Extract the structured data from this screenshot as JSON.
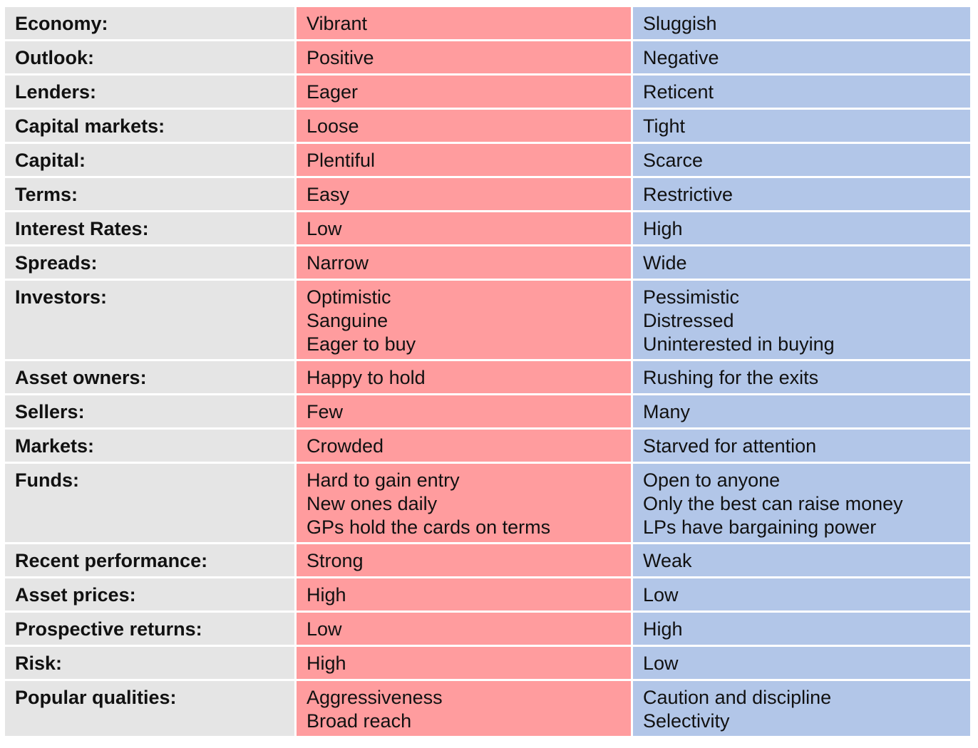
{
  "rows": [
    {
      "label": "Economy:",
      "hot": [
        "Vibrant"
      ],
      "cold": [
        "Sluggish"
      ]
    },
    {
      "label": "Outlook:",
      "hot": [
        "Positive"
      ],
      "cold": [
        "Negative"
      ]
    },
    {
      "label": "Lenders:",
      "hot": [
        "Eager"
      ],
      "cold": [
        "Reticent"
      ]
    },
    {
      "label": "Capital markets:",
      "hot": [
        "Loose"
      ],
      "cold": [
        "Tight"
      ]
    },
    {
      "label": "Capital:",
      "hot": [
        "Plentiful"
      ],
      "cold": [
        "Scarce"
      ]
    },
    {
      "label": "Terms:",
      "hot": [
        "Easy"
      ],
      "cold": [
        "Restrictive"
      ]
    },
    {
      "label": "Interest Rates:",
      "hot": [
        "Low"
      ],
      "cold": [
        "High"
      ]
    },
    {
      "label": "Spreads:",
      "hot": [
        "Narrow"
      ],
      "cold": [
        "Wide"
      ]
    },
    {
      "label": "Investors:",
      "hot": [
        "Optimistic",
        "Sanguine",
        "Eager to buy"
      ],
      "cold": [
        "Pessimistic",
        "Distressed",
        "Uninterested in buying"
      ]
    },
    {
      "label": "Asset owners:",
      "hot": [
        "Happy to hold"
      ],
      "cold": [
        "Rushing for the exits"
      ]
    },
    {
      "label": "Sellers:",
      "hot": [
        "Few"
      ],
      "cold": [
        "Many"
      ]
    },
    {
      "label": "Markets:",
      "hot": [
        "Crowded"
      ],
      "cold": [
        "Starved for attention"
      ]
    },
    {
      "label": "Funds:",
      "hot": [
        "Hard to gain entry",
        "New ones daily",
        "GPs hold the cards on terms"
      ],
      "cold": [
        "Open to anyone",
        "Only the best can raise money",
        "LPs have bargaining power"
      ]
    },
    {
      "label": "Recent performance:",
      "hot": [
        "Strong"
      ],
      "cold": [
        "Weak"
      ]
    },
    {
      "label": "Asset prices:",
      "hot": [
        "High"
      ],
      "cold": [
        "Low"
      ]
    },
    {
      "label": "Prospective returns:",
      "hot": [
        "Low"
      ],
      "cold": [
        "High"
      ]
    },
    {
      "label": "Risk:",
      "hot": [
        "High"
      ],
      "cold": [
        "Low"
      ]
    },
    {
      "label": "Popular qualities:",
      "hot": [
        "Aggressiveness",
        "Broad reach"
      ],
      "cold": [
        "Caution and discipline",
        "Selectivity"
      ]
    }
  ],
  "colors": {
    "label_bg": "#e5e5e5",
    "hot_bg": "#ff9c9e",
    "cold_bg": "#b2c6e8"
  }
}
